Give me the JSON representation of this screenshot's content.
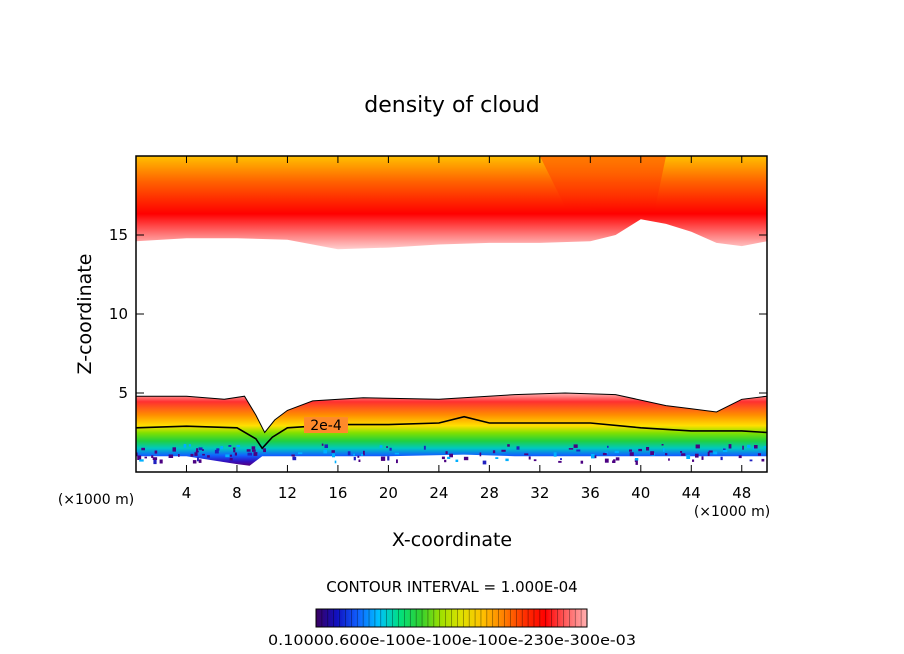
{
  "chart_data": {
    "type": "heatmap",
    "title": "density of cloud",
    "xlabel": "X-coordinate",
    "ylabel": "Z-coordinate",
    "x_unit_left": "(×1000 m)",
    "x_unit_right": "(×1000 m)",
    "xlim": [
      0,
      50
    ],
    "ylim": [
      0,
      20
    ],
    "xticks": [
      4,
      8,
      12,
      16,
      20,
      24,
      28,
      32,
      36,
      40,
      44,
      48
    ],
    "yticks": [
      5,
      10,
      15
    ],
    "contour_label": "2e-4",
    "contour_interval_text": "CONTOUR INTERVAL = 1.000E-04",
    "colorbar_labels_text": "0.10000.600e-100e-100e-100e-230e-300e-03",
    "colorbar_colors": [
      "#3a0060",
      "#1010c0",
      "#1060ff",
      "#00c0ff",
      "#00e080",
      "#30d030",
      "#a0e000",
      "#e0e000",
      "#ffc000",
      "#ff8000",
      "#ff3000",
      "#ff0000",
      "#ff6060",
      "#ffb0b0"
    ],
    "upper_band": {
      "top_color": "#ffc000",
      "mid_color": "#ff6000",
      "peak_color": "#ff0000",
      "edge_color": "#ffd0d0",
      "lower_edge_z": [
        [
          0,
          14.6
        ],
        [
          4,
          14.8
        ],
        [
          8,
          14.8
        ],
        [
          12,
          14.7
        ],
        [
          16,
          14.1
        ],
        [
          20,
          14.2
        ],
        [
          24,
          14.4
        ],
        [
          28,
          14.5
        ],
        [
          32,
          14.5
        ],
        [
          36,
          14.6
        ],
        [
          38,
          15.0
        ],
        [
          40,
          16.0
        ],
        [
          42,
          15.7
        ],
        [
          44,
          15.2
        ],
        [
          46,
          14.5
        ],
        [
          48,
          14.3
        ],
        [
          50,
          14.6
        ]
      ]
    },
    "lower_band": {
      "top_edge_z": [
        [
          0,
          4.8
        ],
        [
          4,
          4.8
        ],
        [
          7,
          4.6
        ],
        [
          8.6,
          4.8
        ],
        [
          9.5,
          3.6
        ],
        [
          10.2,
          2.5
        ],
        [
          11,
          3.3
        ],
        [
          12,
          3.9
        ],
        [
          14,
          4.5
        ],
        [
          18,
          4.7
        ],
        [
          24,
          4.6
        ],
        [
          30,
          4.9
        ],
        [
          34,
          5.0
        ],
        [
          38,
          4.9
        ],
        [
          42,
          4.2
        ],
        [
          44,
          4.0
        ],
        [
          46,
          3.8
        ],
        [
          48,
          4.6
        ],
        [
          50,
          4.8
        ]
      ],
      "contour_2e4_z": [
        [
          0,
          2.8
        ],
        [
          4,
          2.9
        ],
        [
          8,
          2.8
        ],
        [
          9.5,
          2.1
        ],
        [
          10,
          1.5
        ],
        [
          10.8,
          2.2
        ],
        [
          12,
          2.8
        ],
        [
          16,
          3.0
        ],
        [
          20,
          3.0
        ],
        [
          24,
          3.1
        ],
        [
          26,
          3.5
        ],
        [
          28,
          3.1
        ],
        [
          32,
          3.1
        ],
        [
          36,
          3.1
        ],
        [
          40,
          2.8
        ],
        [
          44,
          2.6
        ],
        [
          48,
          2.6
        ],
        [
          50,
          2.5
        ]
      ],
      "base_z": [
        [
          0,
          1.0
        ],
        [
          4,
          1.0
        ],
        [
          8,
          0.5
        ],
        [
          9,
          0.4
        ],
        [
          10,
          1.0
        ],
        [
          12,
          1.0
        ],
        [
          20,
          1.0
        ],
        [
          26,
          1.1
        ],
        [
          30,
          1.0
        ],
        [
          40,
          1.0
        ],
        [
          50,
          1.0
        ]
      ]
    }
  }
}
